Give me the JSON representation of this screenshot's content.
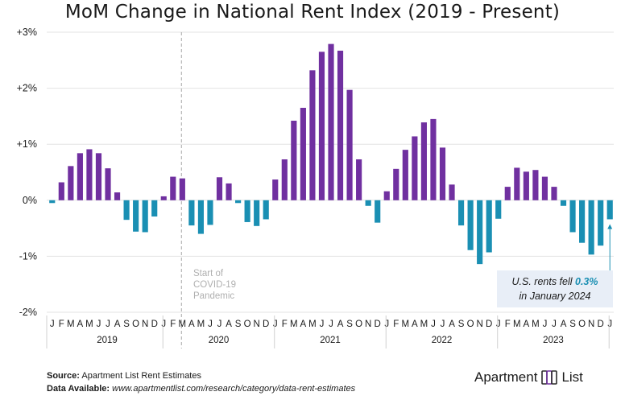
{
  "title": "MoM Change in National Rent Index (2019 - Present)",
  "chart_data": {
    "type": "bar",
    "title": "MoM Change in National Rent Index (2019 - Present)",
    "ylim": [
      -2,
      3
    ],
    "yticks": [
      {
        "value": 3,
        "label": "+3%"
      },
      {
        "value": 2,
        "label": "+2%"
      },
      {
        "value": 1,
        "label": "+1%"
      },
      {
        "value": 0,
        "label": "0%"
      },
      {
        "value": -1,
        "label": "-1%"
      },
      {
        "value": -2,
        "label": "-2%"
      }
    ],
    "month_letters": [
      "J",
      "F",
      "M",
      "A",
      "M",
      "J",
      "J",
      "A",
      "S",
      "O",
      "N",
      "D"
    ],
    "years": [
      "2019",
      "2020",
      "2021",
      "2022",
      "2023"
    ],
    "final_month_label": "J",
    "colors": {
      "positive": "#7030a0",
      "negative": "#1a8fb3"
    },
    "values": [
      -0.05,
      0.32,
      0.61,
      0.84,
      0.91,
      0.84,
      0.57,
      0.14,
      -0.35,
      -0.56,
      -0.57,
      -0.29,
      0.07,
      0.42,
      0.39,
      -0.45,
      -0.6,
      -0.44,
      0.41,
      0.3,
      -0.05,
      -0.39,
      -0.46,
      -0.34,
      0.37,
      0.73,
      1.42,
      1.65,
      2.32,
      2.65,
      2.79,
      2.67,
      1.97,
      0.73,
      -0.1,
      -0.4,
      0.16,
      0.56,
      0.9,
      1.14,
      1.39,
      1.45,
      0.94,
      0.28,
      -0.45,
      -0.89,
      -1.14,
      -0.93,
      -0.33,
      0.24,
      0.58,
      0.51,
      0.54,
      0.42,
      0.24,
      -0.1,
      -0.57,
      -0.76,
      -0.97,
      -0.81,
      -0.34
    ]
  },
  "annotation": {
    "line1": "Start of",
    "line2": "COVID-19",
    "line3": "Pandemic"
  },
  "callout": {
    "line1_prefix": "U.S. rents fell ",
    "line1_value": "0.3%",
    "line2": "in January 2024"
  },
  "footer": {
    "source_label": "Source:",
    "source_text": "Apartment List Rent Estimates",
    "data_label": "Data Available:",
    "data_url": "www.apartmentlist.com/research/category/data-rent-estimates"
  },
  "brand": {
    "name_left": "Apartment",
    "name_right": "List"
  }
}
